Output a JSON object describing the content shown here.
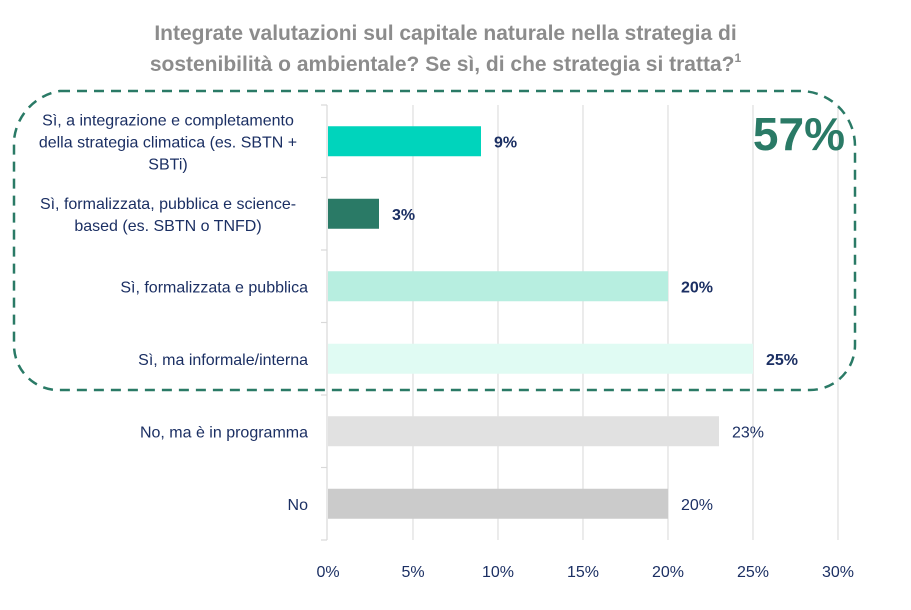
{
  "chart_data": {
    "type": "bar",
    "orientation": "horizontal",
    "title_line1": "Integrate valutazioni sul capitale naturale nella strategia di",
    "title_line2": "sostenibilità o ambientale? Se sì, di che strategia si tratta?",
    "title_footnote": "1",
    "categories": [
      [
        "Sì, a integrazione e completamento",
        "della strategia climatica (es. SBTN +",
        "SBTi)"
      ],
      [
        "Sì, formalizzata, pubblica e science-",
        "based (es. SBTN o TNFD)"
      ],
      [
        "Sì, formalizzata e pubblica"
      ],
      [
        "Sì, ma informale/interna"
      ],
      [
        "No, ma è in programma"
      ],
      [
        "No"
      ]
    ],
    "values": [
      9,
      3,
      20,
      25,
      23,
      20
    ],
    "value_labels": [
      "9%",
      "3%",
      "20%",
      "25%",
      "23%",
      "20%"
    ],
    "bar_colors": [
      "#00d4bc",
      "#2a7a66",
      "#b7eee0",
      "#e0fbf3",
      "#e1e1e1",
      "#cbcbcb"
    ],
    "label_bold": [
      true,
      true,
      true,
      true,
      false,
      false
    ],
    "xlim": [
      0,
      30
    ],
    "x_ticks": [
      0,
      5,
      10,
      15,
      20,
      25,
      30
    ],
    "x_tick_labels": [
      "0%",
      "5%",
      "10%",
      "15%",
      "20%",
      "25%",
      "30%"
    ],
    "grid": true,
    "annotation": {
      "text": "57%",
      "description": "dashed box grouping the four 'Sì' categories",
      "color": "#2a7a66",
      "position": "top-right"
    },
    "xlabel": "",
    "ylabel": ""
  }
}
